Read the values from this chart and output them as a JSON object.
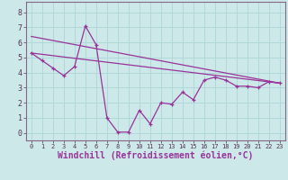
{
  "line1_x": [
    0,
    1,
    2,
    3,
    4,
    5,
    6,
    7,
    8,
    9,
    10,
    11,
    12,
    13,
    14,
    15,
    16,
    17,
    18,
    19,
    20,
    21,
    22,
    23
  ],
  "line1_y": [
    5.3,
    4.8,
    4.3,
    3.8,
    4.4,
    7.1,
    5.85,
    1.0,
    0.05,
    0.05,
    1.5,
    0.6,
    2.0,
    1.9,
    2.7,
    2.2,
    3.5,
    3.7,
    3.5,
    3.1,
    3.1,
    3.0,
    3.4,
    3.3
  ],
  "line2_x": [
    0,
    23
  ],
  "line2_y": [
    6.4,
    3.3
  ],
  "line3_x": [
    0,
    23
  ],
  "line3_y": [
    5.3,
    3.3
  ],
  "line_color": "#993399",
  "bg_color": "#cce8e8",
  "grid_color": "#b0d8d8",
  "xlabel": "Windchill (Refroidissement éolien,°C)",
  "xlim": [
    -0.5,
    23.5
  ],
  "ylim": [
    -0.5,
    8.7
  ],
  "xticks": [
    0,
    1,
    2,
    3,
    4,
    5,
    6,
    7,
    8,
    9,
    10,
    11,
    12,
    13,
    14,
    15,
    16,
    17,
    18,
    19,
    20,
    21,
    22,
    23
  ],
  "yticks": [
    0,
    1,
    2,
    3,
    4,
    5,
    6,
    7,
    8
  ],
  "tick_fontsize": 5.5,
  "xlabel_fontsize": 7
}
